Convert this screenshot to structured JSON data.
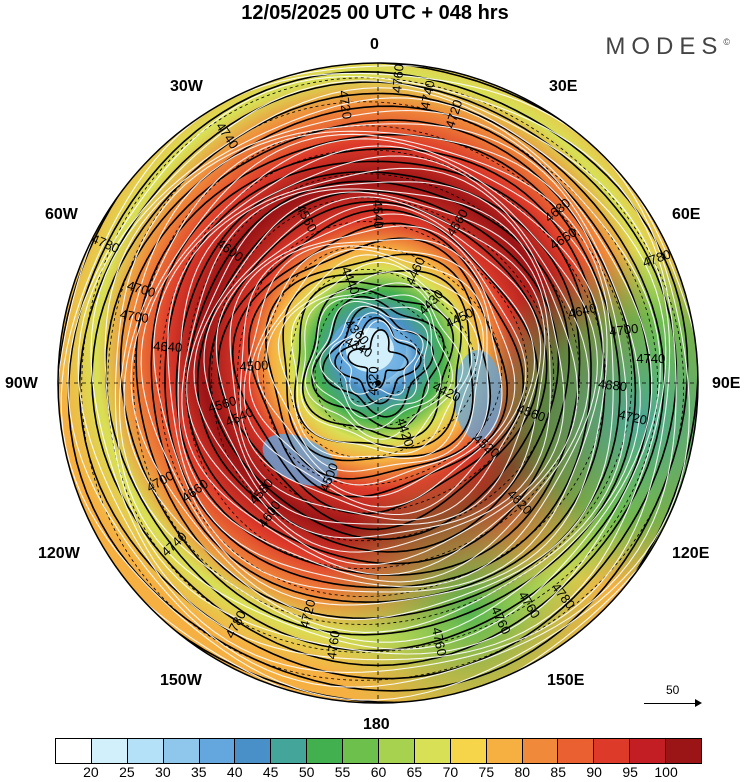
{
  "header": {
    "title": "12/05/2025  00 UTC  + 048 hrs",
    "logo": "MODES",
    "logo_mark": "©"
  },
  "map": {
    "projection": "polar-stereographic",
    "fill_field": "wind speed (shaded)",
    "lon_labels": [
      "0",
      "30E",
      "60E",
      "90E",
      "120E",
      "150E",
      "180",
      "150W",
      "120W",
      "90W",
      "60W",
      "30W"
    ],
    "contour_labels": [
      "4740",
      "4740",
      "4760",
      "4780",
      "4700",
      "4660",
      "4720",
      "4560",
      "4560",
      "4540",
      "4460",
      "4420",
      "4340",
      "4640",
      "4600",
      "4720",
      "4520",
      "4500",
      "4430",
      "4320",
      "4360",
      "4680",
      "4660",
      "4740",
      "4760",
      "4700",
      "4450",
      "4500",
      "4440",
      "4420",
      "4560",
      "4560",
      "4760",
      "4600",
      "4700",
      "4580",
      "4540",
      "4620",
      "4640",
      "4680",
      "4760",
      "4740",
      "4720",
      "4700",
      "4720",
      "4760",
      "4780",
      "4780",
      "4780"
    ]
  },
  "reference_vector": {
    "label": "50"
  },
  "colorbar": {
    "colors": [
      "#ffffff",
      "#d2f0fc",
      "#b4e0f8",
      "#8fc6ec",
      "#63a7de",
      "#4a90c8",
      "#44a59a",
      "#43b04f",
      "#6cc04b",
      "#a6d250",
      "#d8e055",
      "#f7d54a",
      "#f6b042",
      "#f08a3a",
      "#ea6030",
      "#dd3a2a",
      "#c21e24",
      "#9b1416"
    ],
    "ticks": [
      "20",
      "25",
      "30",
      "35",
      "40",
      "45",
      "50",
      "55",
      "60",
      "65",
      "70",
      "75",
      "80",
      "85",
      "90",
      "95",
      "100"
    ]
  }
}
